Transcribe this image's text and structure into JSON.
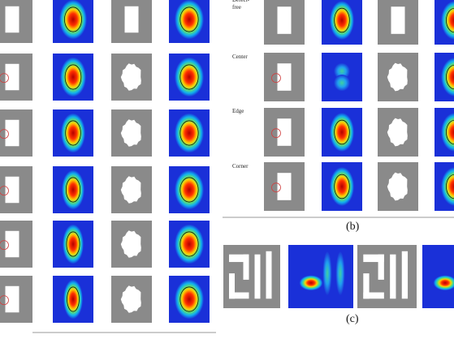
{
  "panel_b": {
    "row_labels": [
      "Defect-free",
      "Center",
      "Edge",
      "Corner"
    ],
    "caption": "(b)"
  },
  "panel_c": {
    "caption": "(c)"
  }
}
